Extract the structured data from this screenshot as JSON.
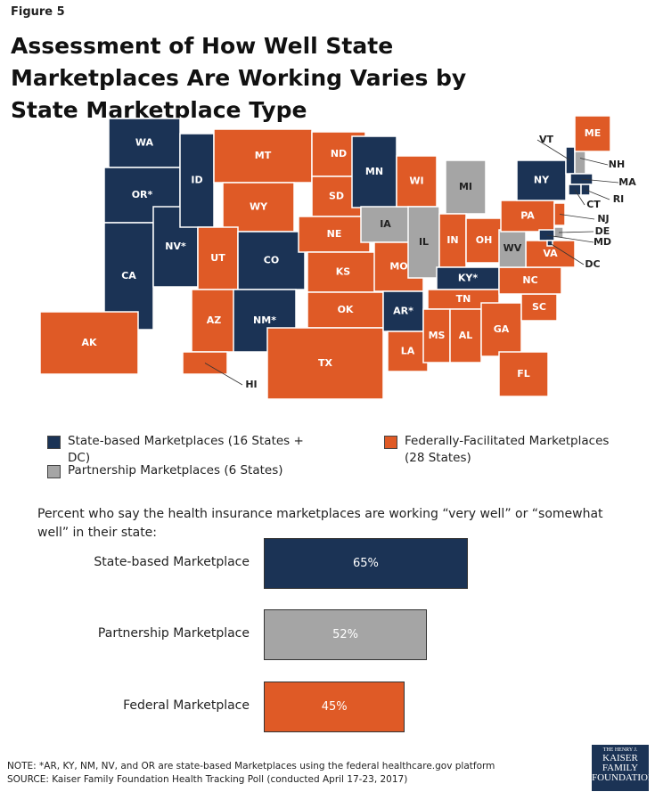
{
  "figure_label": "Figure 5",
  "title": "Assessment of How Well State Marketplaces Are Working Varies by State Marketplace Type",
  "map": {
    "groups": [
      {
        "label": "State-based Marketplaces (16 States + DC)",
        "color": "#1b3355"
      },
      {
        "label": "Federally-Facilitated Marketplaces (28 States)",
        "color": "#df5a26"
      },
      {
        "label": "Partnership Marketplaces (6 States)",
        "color": "#a5a5a5"
      }
    ],
    "states": [
      {
        "label": "WA",
        "group": 0
      },
      {
        "label": "OR*",
        "group": 0
      },
      {
        "label": "CA",
        "group": 0
      },
      {
        "label": "NV*",
        "group": 0
      },
      {
        "label": "ID",
        "group": 0
      },
      {
        "label": "MT",
        "group": 1
      },
      {
        "label": "WY",
        "group": 1
      },
      {
        "label": "UT",
        "group": 1
      },
      {
        "label": "CO",
        "group": 0
      },
      {
        "label": "AZ",
        "group": 1
      },
      {
        "label": "NM*",
        "group": 0
      },
      {
        "label": "ND",
        "group": 1
      },
      {
        "label": "SD",
        "group": 1
      },
      {
        "label": "NE",
        "group": 1
      },
      {
        "label": "KS",
        "group": 1
      },
      {
        "label": "OK",
        "group": 1
      },
      {
        "label": "TX",
        "group": 1
      },
      {
        "label": "MN",
        "group": 0
      },
      {
        "label": "IA",
        "group": 2
      },
      {
        "label": "MO",
        "group": 1
      },
      {
        "label": "AR*",
        "group": 0
      },
      {
        "label": "LA",
        "group": 1
      },
      {
        "label": "WI",
        "group": 1
      },
      {
        "label": "IL",
        "group": 2
      },
      {
        "label": "MI",
        "group": 2
      },
      {
        "label": "IN",
        "group": 1
      },
      {
        "label": "OH",
        "group": 1
      },
      {
        "label": "KY*",
        "group": 0
      },
      {
        "label": "TN",
        "group": 1
      },
      {
        "label": "MS",
        "group": 1
      },
      {
        "label": "AL",
        "group": 1
      },
      {
        "label": "GA",
        "group": 1
      },
      {
        "label": "FL",
        "group": 1
      },
      {
        "label": "SC",
        "group": 1
      },
      {
        "label": "NC",
        "group": 1
      },
      {
        "label": "VA",
        "group": 1
      },
      {
        "label": "WV",
        "group": 2
      },
      {
        "label": "PA",
        "group": 1
      },
      {
        "label": "NY",
        "group": 0
      },
      {
        "label": "VT",
        "group": 0
      },
      {
        "label": "NH",
        "group": 2
      },
      {
        "label": "ME",
        "group": 1
      },
      {
        "label": "MA",
        "group": 0
      },
      {
        "label": "CT",
        "group": 0
      },
      {
        "label": "RI",
        "group": 0
      },
      {
        "label": "NJ",
        "group": 1
      },
      {
        "label": "DE",
        "group": 2
      },
      {
        "label": "MD",
        "group": 0
      },
      {
        "label": "DC",
        "group": 0
      },
      {
        "label": "AK",
        "group": 1
      },
      {
        "label": "HI",
        "group": 1
      }
    ]
  },
  "chart_data": {
    "type": "bar",
    "title": "Percent who say the health insurance marketplaces are working “very well” or “somewhat well” in their state:",
    "categories": [
      "State-based Marketplace",
      "Partnership Marketplace",
      "Federal Marketplace"
    ],
    "values": [
      65,
      52,
      45
    ],
    "value_labels": [
      "65%",
      "52%",
      "45%"
    ],
    "colors": [
      "#1b3355",
      "#a5a5a5",
      "#df5a26"
    ]
  },
  "note": "NOTE: *AR, KY, NM, NV, and OR are state-based Marketplaces using the federal healthcare.gov platform",
  "source": "SOURCE: Kaiser Family Foundation Health Tracking Poll (conducted April 17-23, 2017)",
  "logo": [
    "THE HENRY J.",
    "KAISER",
    "FAMILY",
    "FOUNDATION"
  ]
}
